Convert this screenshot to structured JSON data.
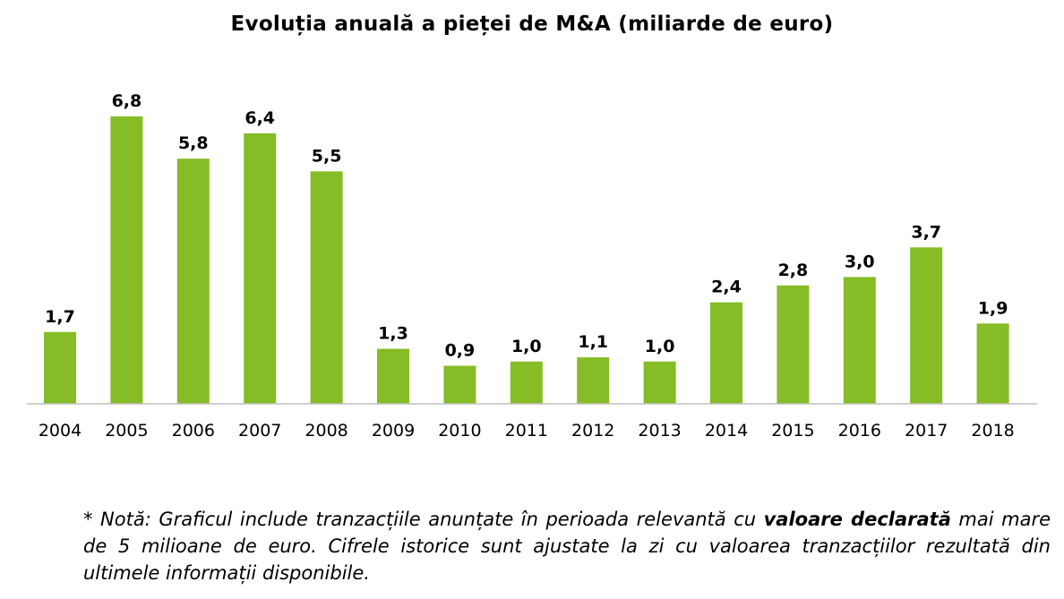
{
  "chart_data": {
    "type": "bar",
    "title": "Evoluția anuală a pieței de M&A (miliarde de euro)",
    "categories": [
      "2004",
      "2005",
      "2006",
      "2007",
      "2008",
      "2009",
      "2010",
      "2011",
      "2012",
      "2013",
      "2014",
      "2015",
      "2016",
      "2017",
      "2018"
    ],
    "values": [
      1.7,
      6.8,
      5.8,
      6.4,
      5.5,
      1.3,
      0.9,
      1.0,
      1.1,
      1.0,
      2.4,
      2.8,
      3.0,
      3.7,
      1.9
    ],
    "data_labels": [
      "1,7",
      "6,8",
      "5,8",
      "6,4",
      "5,5",
      "1,3",
      "0,9",
      "1,0",
      "1,1",
      "1,0",
      "2,4",
      "2,8",
      "3,0",
      "3,7",
      "1,9"
    ],
    "xlabel": "",
    "ylabel": "",
    "ylim": [
      0,
      6.8
    ],
    "grid": false,
    "legend": "none",
    "bar_color": "#86bc25",
    "axis_color": "#bfbfbf"
  },
  "footnote": {
    "part1": "* Notă: Graficul include tranzacțiile anunțate în perioada relevantă cu ",
    "bold": "valoare declarată",
    "part2": " mai mare de 5 milioane de euro. Cifrele istorice sunt ajustate la zi cu valoarea tranzacțiilor rezultată din ultimele informații disponibile."
  }
}
